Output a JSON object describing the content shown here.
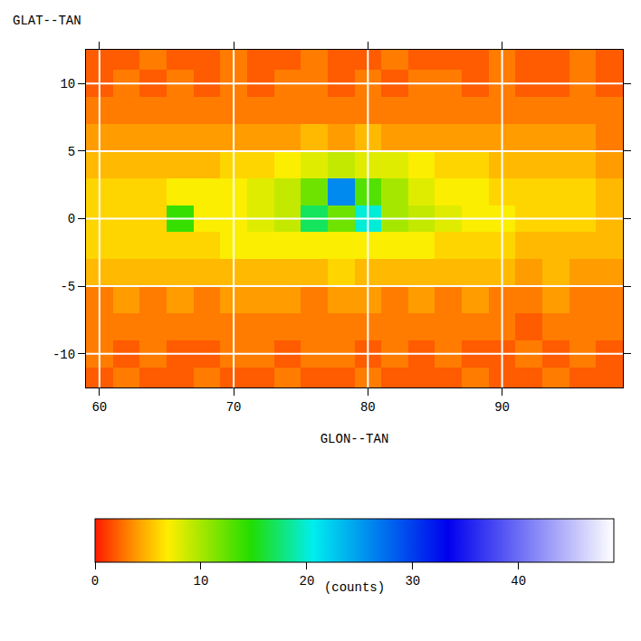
{
  "chart_data": {
    "type": "heatmap",
    "xlabel": "GLON--TAN",
    "ylabel": "GLAT--TAN",
    "x": [
      60,
      62,
      64,
      66,
      68,
      70,
      72,
      74,
      76,
      78,
      80,
      82,
      84,
      86,
      88,
      90,
      92,
      94,
      96,
      98
    ],
    "y": [
      -12,
      -10,
      -8,
      -6,
      -4,
      -2,
      0,
      2,
      4,
      6,
      8,
      10,
      12
    ],
    "cells": [
      [
        2,
        3,
        2,
        2,
        3,
        2,
        2,
        3,
        2,
        2,
        3,
        2,
        2,
        2,
        3,
        2,
        2,
        3,
        2,
        2
      ],
      [
        3,
        2,
        3,
        2,
        2,
        3,
        3,
        2,
        3,
        3,
        2,
        3,
        2,
        3,
        2,
        2,
        3,
        2,
        3,
        2
      ],
      [
        3,
        3,
        3,
        3,
        3,
        3,
        3,
        3,
        3,
        3,
        3,
        3,
        3,
        3,
        3,
        3,
        2,
        3,
        3,
        3
      ],
      [
        3,
        4,
        3,
        4,
        3,
        4,
        4,
        4,
        3,
        4,
        4,
        3,
        4,
        3,
        4,
        3,
        3,
        4,
        3,
        3
      ],
      [
        5,
        5,
        5,
        5,
        5,
        5,
        5,
        5,
        5,
        6,
        5,
        5,
        5,
        5,
        5,
        5,
        4,
        5,
        4,
        4
      ],
      [
        6,
        6,
        6,
        6,
        6,
        7,
        7,
        7,
        7,
        7,
        7,
        7,
        7,
        6,
        6,
        6,
        5,
        5,
        5,
        5
      ],
      [
        6,
        6,
        6,
        14,
        7,
        7,
        8,
        9,
        17,
        12,
        20,
        10,
        9,
        8,
        7,
        7,
        6,
        6,
        6,
        5
      ],
      [
        6,
        6,
        6,
        7,
        7,
        7,
        8,
        9,
        12,
        26,
        13,
        10,
        8,
        7,
        7,
        6,
        6,
        6,
        6,
        5
      ],
      [
        5,
        5,
        5,
        5,
        5,
        6,
        6,
        7,
        8,
        9,
        8,
        8,
        7,
        6,
        6,
        5,
        5,
        5,
        5,
        4
      ],
      [
        4,
        4,
        4,
        4,
        4,
        4,
        4,
        4,
        5,
        4,
        5,
        4,
        4,
        4,
        4,
        4,
        4,
        4,
        4,
        3
      ],
      [
        3,
        3,
        3,
        3,
        3,
        3,
        3,
        3,
        3,
        3,
        3,
        3,
        3,
        3,
        3,
        3,
        3,
        3,
        3,
        3
      ],
      [
        2,
        3,
        2,
        3,
        2,
        3,
        2,
        3,
        3,
        2,
        3,
        2,
        3,
        3,
        2,
        3,
        2,
        2,
        3,
        2
      ],
      [
        2,
        2,
        3,
        2,
        2,
        3,
        2,
        2,
        3,
        2,
        2,
        3,
        2,
        2,
        2,
        3,
        2,
        2,
        3,
        2
      ]
    ],
    "xlim": [
      59,
      99
    ],
    "ylim": [
      -12.5,
      12.5
    ],
    "xticks": [
      60,
      70,
      80,
      90
    ],
    "yticks": [
      -10,
      -5,
      0,
      5,
      10
    ],
    "colorbar": {
      "range": [
        0,
        49
      ],
      "ticks": [
        0,
        10,
        20,
        30,
        40
      ],
      "label": "(counts)"
    },
    "grid": true
  }
}
